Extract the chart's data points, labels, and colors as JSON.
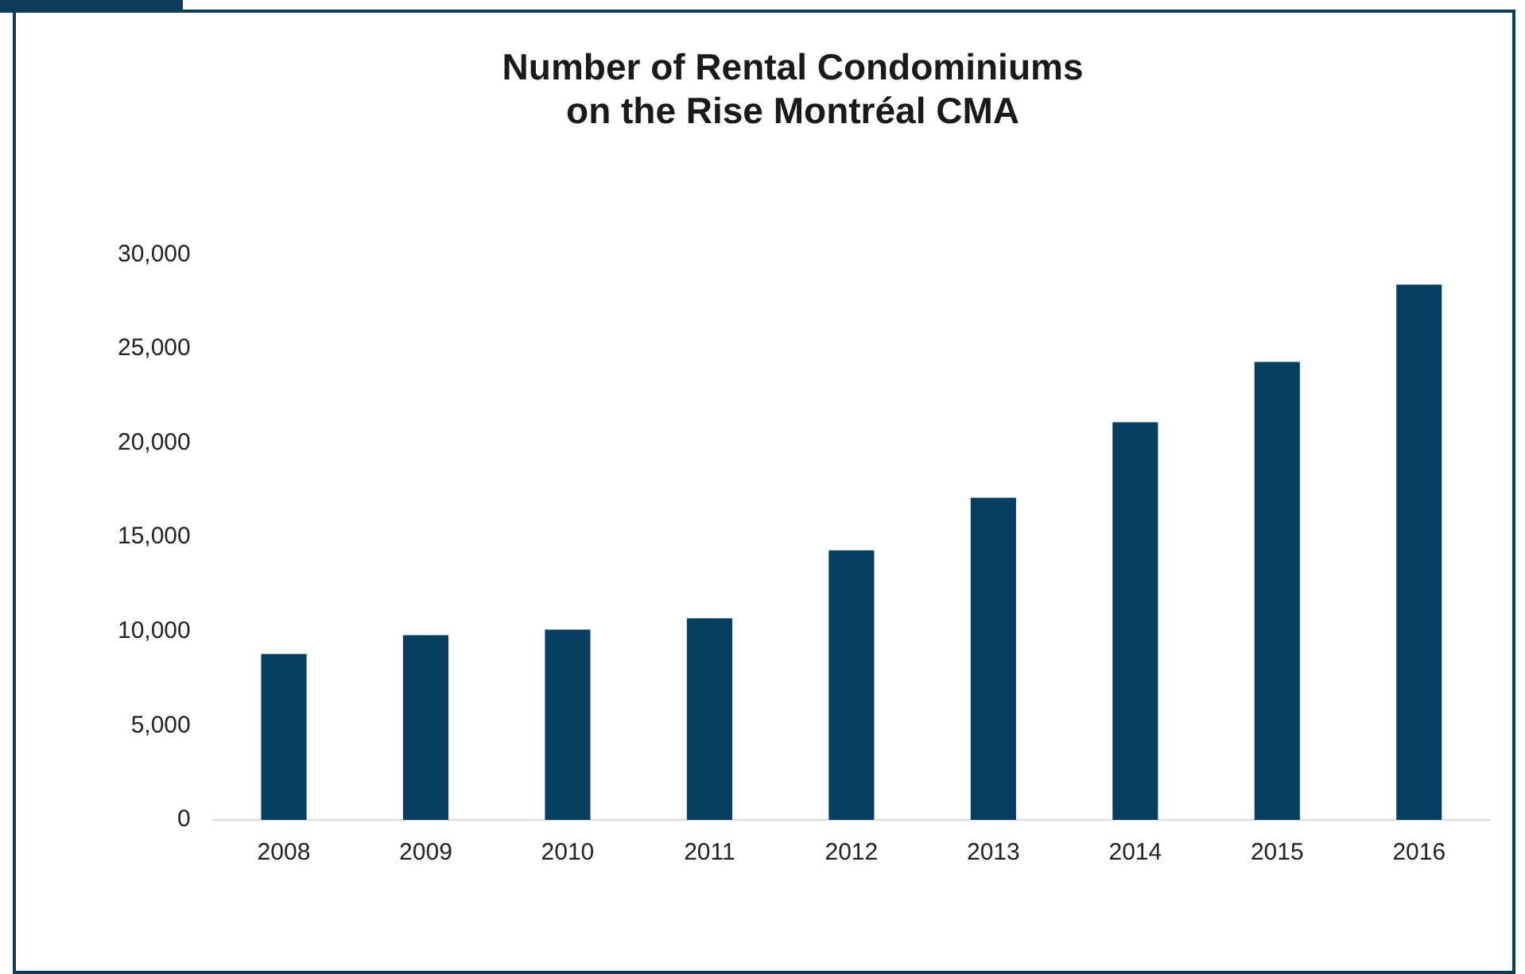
{
  "chart_data": {
    "type": "bar",
    "title": "Number of Rental Condominiums on the Rise Montréal CMA",
    "categories": [
      "2008",
      "2009",
      "2010",
      "2011",
      "2012",
      "2013",
      "2014",
      "2015",
      "2016"
    ],
    "values": [
      8800,
      9800,
      10100,
      10700,
      14300,
      17100,
      21100,
      24300,
      28400
    ],
    "color": "#073f62",
    "ylim": [
      0,
      30000
    ],
    "yticks": [
      0,
      {
        "value": 5000,
        "label": "5,000"
      },
      {
        "value": 10000,
        "label": "10,000"
      },
      {
        "value": 15000,
        "label": "15,000"
      },
      {
        "value": 20000,
        "label": "20,000"
      },
      {
        "value": 25000,
        "label": "25,000"
      },
      {
        "value": 30000,
        "label": "30,000"
      }
    ],
    "grid": false,
    "legend": false
  }
}
